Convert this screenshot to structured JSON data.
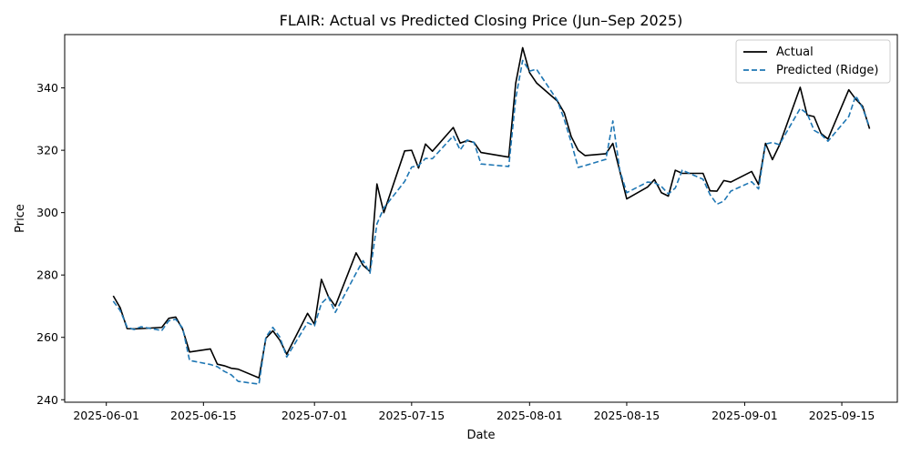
{
  "chart_data": {
    "type": "line",
    "title": "FLAIR: Actual vs Predicted Closing Price (Jun–Sep 2025)",
    "xlabel": "Date",
    "ylabel": "Price",
    "xlim": [
      "2025-05-26",
      "2025-09-23"
    ],
    "ylim": [
      239.2,
      357.1
    ],
    "x_ticks": [
      "2025-06-01",
      "2025-06-15",
      "2025-07-01",
      "2025-07-15",
      "2025-08-01",
      "2025-08-15",
      "2025-09-01",
      "2025-09-15"
    ],
    "y_ticks": [
      240,
      260,
      280,
      300,
      320,
      340
    ],
    "grid": false,
    "legend_position": "upper right",
    "series": [
      {
        "name": "Actual",
        "color": "#000000",
        "line_style": "solid",
        "points": [
          [
            "2025-06-02",
            273.3
          ],
          [
            "2025-06-03",
            269.5
          ],
          [
            "2025-06-04",
            262.8
          ],
          [
            "2025-06-05",
            262.7
          ],
          [
            "2025-06-06",
            262.8
          ],
          [
            "2025-06-09",
            263.2
          ],
          [
            "2025-06-10",
            266.1
          ],
          [
            "2025-06-11",
            266.5
          ],
          [
            "2025-06-12",
            262.6
          ],
          [
            "2025-06-13",
            255.3
          ],
          [
            "2025-06-16",
            256.3
          ],
          [
            "2025-06-17",
            251.4
          ],
          [
            "2025-06-18",
            250.9
          ],
          [
            "2025-06-19",
            250.1
          ],
          [
            "2025-06-20",
            249.8
          ],
          [
            "2025-06-23",
            247.0
          ],
          [
            "2025-06-24",
            259.7
          ],
          [
            "2025-06-25",
            262.1
          ],
          [
            "2025-06-26",
            259.1
          ],
          [
            "2025-06-27",
            254.6
          ],
          [
            "2025-06-30",
            267.7
          ],
          [
            "2025-07-01",
            264.2
          ],
          [
            "2025-07-02",
            278.6
          ],
          [
            "2025-07-03",
            273.1
          ],
          [
            "2025-07-04",
            270.0
          ],
          [
            "2025-07-07",
            287.1
          ],
          [
            "2025-07-08",
            283.1
          ],
          [
            "2025-07-09",
            281.1
          ],
          [
            "2025-07-10",
            309.2
          ],
          [
            "2025-07-11",
            300.0
          ],
          [
            "2025-07-14",
            319.8
          ],
          [
            "2025-07-15",
            320.0
          ],
          [
            "2025-07-16",
            314.3
          ],
          [
            "2025-07-17",
            322.0
          ],
          [
            "2025-07-18",
            319.7
          ],
          [
            "2025-07-21",
            327.3
          ],
          [
            "2025-07-22",
            322.3
          ],
          [
            "2025-07-23",
            323.1
          ],
          [
            "2025-07-24",
            322.5
          ],
          [
            "2025-07-25",
            319.3
          ],
          [
            "2025-07-29",
            317.8
          ],
          [
            "2025-07-30",
            341.5
          ],
          [
            "2025-07-31",
            352.9
          ],
          [
            "2025-08-01",
            344.9
          ],
          [
            "2025-08-02",
            341.6
          ],
          [
            "2025-08-05",
            335.8
          ],
          [
            "2025-08-06",
            332.0
          ],
          [
            "2025-08-07",
            324.4
          ],
          [
            "2025-08-08",
            320.0
          ],
          [
            "2025-08-09",
            318.3
          ],
          [
            "2025-08-12",
            318.9
          ],
          [
            "2025-08-13",
            322.2
          ],
          [
            "2025-08-14",
            313.3
          ],
          [
            "2025-08-15",
            304.4
          ],
          [
            "2025-08-18",
            308.2
          ],
          [
            "2025-08-19",
            310.6
          ],
          [
            "2025-08-20",
            306.4
          ],
          [
            "2025-08-21",
            305.3
          ],
          [
            "2025-08-22",
            313.6
          ],
          [
            "2025-08-23",
            312.6
          ],
          [
            "2025-08-26",
            312.6
          ],
          [
            "2025-08-27",
            307.0
          ],
          [
            "2025-08-28",
            306.9
          ],
          [
            "2025-08-29",
            310.3
          ],
          [
            "2025-08-30",
            309.8
          ],
          [
            "2025-09-02",
            313.2
          ],
          [
            "2025-09-03",
            309.0
          ],
          [
            "2025-09-04",
            322.2
          ],
          [
            "2025-09-05",
            317.0
          ],
          [
            "2025-09-06",
            321.6
          ],
          [
            "2025-09-09",
            340.2
          ],
          [
            "2025-09-10",
            331.3
          ],
          [
            "2025-09-11",
            330.8
          ],
          [
            "2025-09-12",
            325.4
          ],
          [
            "2025-09-13",
            323.6
          ],
          [
            "2025-09-16",
            339.4
          ],
          [
            "2025-09-17",
            336.4
          ],
          [
            "2025-09-18",
            334.1
          ],
          [
            "2025-09-19",
            326.9
          ]
        ]
      },
      {
        "name": "Predicted (Ridge)",
        "color": "#1f77b4",
        "line_style": "dashed",
        "points": [
          [
            "2025-06-02",
            271.6
          ],
          [
            "2025-06-03",
            268.6
          ],
          [
            "2025-06-04",
            263.3
          ],
          [
            "2025-06-05",
            262.5
          ],
          [
            "2025-06-06",
            263.4
          ],
          [
            "2025-06-09",
            262.2
          ],
          [
            "2025-06-10",
            265.3
          ],
          [
            "2025-06-11",
            265.8
          ],
          [
            "2025-06-12",
            263.0
          ],
          [
            "2025-06-13",
            252.6
          ],
          [
            "2025-06-16",
            251.3
          ],
          [
            "2025-06-17",
            250.6
          ],
          [
            "2025-06-18",
            249.1
          ],
          [
            "2025-06-19",
            248.0
          ],
          [
            "2025-06-20",
            245.9
          ],
          [
            "2025-06-23",
            245.0
          ],
          [
            "2025-06-24",
            260.1
          ],
          [
            "2025-06-25",
            263.2
          ],
          [
            "2025-06-26",
            260.1
          ],
          [
            "2025-06-27",
            253.7
          ],
          [
            "2025-06-30",
            264.7
          ],
          [
            "2025-07-01",
            263.7
          ],
          [
            "2025-07-02",
            270.9
          ],
          [
            "2025-07-03",
            273.0
          ],
          [
            "2025-07-04",
            268.0
          ],
          [
            "2025-07-07",
            280.6
          ],
          [
            "2025-07-08",
            284.6
          ],
          [
            "2025-07-09",
            280.6
          ],
          [
            "2025-07-10",
            296.4
          ],
          [
            "2025-07-11",
            301.5
          ],
          [
            "2025-07-14",
            310.0
          ],
          [
            "2025-07-15",
            314.6
          ],
          [
            "2025-07-16",
            315.1
          ],
          [
            "2025-07-17",
            317.4
          ],
          [
            "2025-07-18",
            317.3
          ],
          [
            "2025-07-21",
            324.6
          ],
          [
            "2025-07-22",
            320.1
          ],
          [
            "2025-07-23",
            323.3
          ],
          [
            "2025-07-24",
            322.5
          ],
          [
            "2025-07-25",
            315.6
          ],
          [
            "2025-07-29",
            314.8
          ],
          [
            "2025-07-30",
            336.6
          ],
          [
            "2025-07-31",
            348.8
          ],
          [
            "2025-08-01",
            345.4
          ],
          [
            "2025-08-02",
            346.0
          ],
          [
            "2025-08-05",
            336.0
          ],
          [
            "2025-08-06",
            329.9
          ],
          [
            "2025-08-07",
            322.5
          ],
          [
            "2025-08-08",
            314.5
          ],
          [
            "2025-08-09",
            315.1
          ],
          [
            "2025-08-12",
            317.1
          ],
          [
            "2025-08-13",
            329.4
          ],
          [
            "2025-08-14",
            313.6
          ],
          [
            "2025-08-15",
            306.4
          ],
          [
            "2025-08-18",
            309.8
          ],
          [
            "2025-08-19",
            309.6
          ],
          [
            "2025-08-20",
            308.4
          ],
          [
            "2025-08-21",
            306.0
          ],
          [
            "2025-08-22",
            307.9
          ],
          [
            "2025-08-23",
            313.6
          ],
          [
            "2025-08-26",
            310.7
          ],
          [
            "2025-08-27",
            305.8
          ],
          [
            "2025-08-28",
            302.7
          ],
          [
            "2025-08-29",
            303.7
          ],
          [
            "2025-08-30",
            306.9
          ],
          [
            "2025-09-02",
            309.9
          ],
          [
            "2025-09-03",
            307.6
          ],
          [
            "2025-09-04",
            322.0
          ],
          [
            "2025-09-05",
            322.5
          ],
          [
            "2025-09-06",
            321.8
          ],
          [
            "2025-09-09",
            333.4
          ],
          [
            "2025-09-10",
            331.8
          ],
          [
            "2025-09-11",
            326.4
          ],
          [
            "2025-09-12",
            325.1
          ],
          [
            "2025-09-13",
            322.9
          ],
          [
            "2025-09-16",
            330.8
          ],
          [
            "2025-09-17",
            337.5
          ],
          [
            "2025-09-18",
            333.5
          ],
          [
            "2025-09-19",
            327.4
          ]
        ]
      }
    ]
  }
}
